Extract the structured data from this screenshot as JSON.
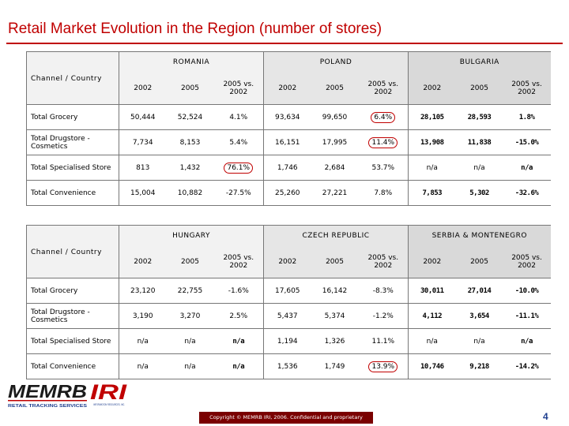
{
  "title": "Retail Market Evolution in the Region (number of stores)",
  "corner_label": "Channel / Country",
  "period_headers": [
    "2002",
    "2005",
    "2005 vs. 2002"
  ],
  "tables": [
    {
      "countries": [
        "ROMANIA",
        "POLAND",
        "BULGARIA"
      ],
      "rows": [
        {
          "label": "Total Grocery",
          "values": [
            "50,444",
            "52,524",
            "4.1%",
            "93,634",
            "99,650",
            "6.4%",
            "28,105",
            "28,593",
            "1.8%"
          ]
        },
        {
          "label": "Total Drugstore - Cosmetics",
          "values": [
            "7,734",
            "8,153",
            "5.4%",
            "16,151",
            "17,995",
            "11.4%",
            "13,908",
            "11,838",
            "-15.0%"
          ]
        },
        {
          "label": "Total Specialised Store",
          "values": [
            "813",
            "1,432",
            "76.1%",
            "1,746",
            "2,684",
            "53.7%",
            "n/a",
            "n/a",
            "n/a"
          ]
        },
        {
          "label": "Total Convenience",
          "values": [
            "15,004",
            "10,882",
            "-27.5%",
            "25,260",
            "27,221",
            "7.8%",
            "7,853",
            "5,302",
            "-32.6%"
          ]
        }
      ]
    },
    {
      "countries": [
        "HUNGARY",
        "CZECH REPUBLIC",
        "SERBIA & MONTENEGRO"
      ],
      "rows": [
        {
          "label": "Total Grocery",
          "values": [
            "23,120",
            "22,755",
            "-1.6%",
            "17,605",
            "16,142",
            "-8.3%",
            "30,011",
            "27,014",
            "-10.0%"
          ]
        },
        {
          "label": "Total Drugstore - Cosmetics",
          "values": [
            "3,190",
            "3,270",
            "2.5%",
            "5,437",
            "5,374",
            "-1.2%",
            "4,112",
            "3,654",
            "-11.1%"
          ]
        },
        {
          "label": "Total Specialised Store",
          "values": [
            "n/a",
            "n/a",
            "n/a",
            "1,194",
            "1,326",
            "11.1%",
            "n/a",
            "n/a",
            "n/a"
          ]
        },
        {
          "label": "Total Convenience",
          "values": [
            "n/a",
            "n/a",
            "n/a",
            "1,536",
            "1,749",
            "13.9%",
            "10,746",
            "9,218",
            "-14.2%"
          ]
        }
      ]
    }
  ],
  "footer": "Copyright © MEMRB IRI, 2006. Confidential and proprietary",
  "page_number": "4",
  "logo": {
    "memrb_text": "MEMRB",
    "memrb_tagline": "RETAIL TRACKING SERVICES",
    "iri_text": "IRI",
    "iri_tagline": "INFORMATION RESOURCES, INC."
  },
  "colors": {
    "title": "#c00000",
    "rule": "#c00000",
    "footer_bg": "#7a0000",
    "page_number": "#1f3f8f",
    "highlight_ring": "#c00000"
  }
}
